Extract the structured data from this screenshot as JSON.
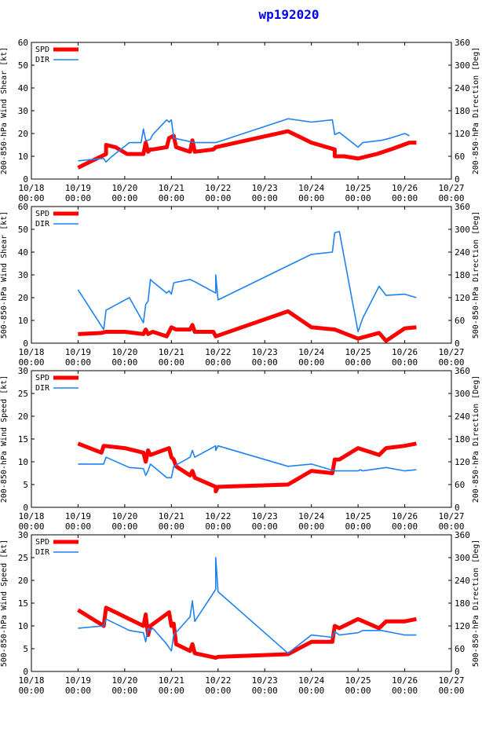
{
  "title": "wp192020",
  "colors": {
    "spd": "#ff0000",
    "dir": "#1e82f0",
    "axis": "#000000",
    "title": "#0000ff"
  },
  "x_ticks": [
    [
      "10/18",
      "00:00"
    ],
    [
      "10/19",
      "00:00"
    ],
    [
      "10/20",
      "00:00"
    ],
    [
      "10/21",
      "00:00"
    ],
    [
      "10/22",
      "00:00"
    ],
    [
      "10/23",
      "00:00"
    ],
    [
      "10/24",
      "00:00"
    ],
    [
      "10/25",
      "00:00"
    ],
    [
      "10/26",
      "00:00"
    ],
    [
      "10/27",
      "00:00"
    ]
  ],
  "chart_data": [
    {
      "type": "line",
      "ylabel_left": "200-850-hPa Wind Shear [kt]",
      "ylabel_right": "200-850-hPa Direction [Deg]",
      "ylim_left": [
        0,
        60
      ],
      "yticks_left": [
        0,
        10,
        20,
        30,
        40,
        50,
        60
      ],
      "ylim_right": [
        0,
        360
      ],
      "yticks_right": [
        0,
        60,
        120,
        180,
        240,
        300,
        360
      ],
      "xlim": [
        0,
        9
      ],
      "legend": [
        "SPD",
        "DIR"
      ],
      "series": [
        {
          "name": "SPD",
          "axis": "left",
          "x": [
            1.0,
            1.3,
            1.6,
            1.6,
            1.8,
            2.05,
            2.4,
            2.45,
            2.5,
            2.55,
            2.6,
            2.9,
            2.95,
            3.05,
            3.1,
            3.4,
            3.45,
            3.5,
            3.9,
            3.95,
            5.5,
            6.0,
            6.5,
            6.5,
            6.7,
            7.0,
            7.4,
            7.7,
            8.1,
            8.25
          ],
          "y": [
            5,
            8,
            11,
            15,
            14,
            11,
            11,
            16,
            12,
            13,
            13,
            14,
            18,
            19,
            14,
            12,
            17,
            12,
            13,
            14,
            21,
            16,
            13,
            10,
            10,
            9,
            11,
            13,
            16,
            16
          ]
        },
        {
          "name": "DIR",
          "axis": "right",
          "x": [
            1.0,
            1.5,
            1.55,
            1.6,
            1.7,
            2.1,
            2.35,
            2.4,
            2.45,
            2.5,
            2.55,
            2.6,
            2.9,
            2.95,
            3.0,
            3.05,
            3.5,
            3.55,
            3.9,
            3.95,
            5.5,
            6.0,
            6.45,
            6.5,
            6.6,
            7.0,
            7.05,
            7.1,
            7.5,
            7.7,
            8.0,
            8.1
          ],
          "y": [
            48,
            54,
            54,
            45,
            57,
            96,
            96,
            132,
            102,
            102,
            105,
            117,
            156,
            150,
            156,
            108,
            96,
            96,
            96,
            96,
            159,
            150,
            156,
            117,
            123,
            84,
            90,
            96,
            102,
            108,
            120,
            114
          ]
        }
      ]
    },
    {
      "type": "line",
      "ylabel_left": "500-850-hPa Wind Shear [kt]",
      "ylabel_right": "500-850-hPa Direction [Deg]",
      "ylim_left": [
        0,
        60
      ],
      "yticks_left": [
        0,
        10,
        20,
        30,
        40,
        50,
        60
      ],
      "ylim_right": [
        0,
        360
      ],
      "yticks_right": [
        0,
        60,
        120,
        180,
        240,
        300,
        360
      ],
      "xlim": [
        0,
        9
      ],
      "legend": [
        "SPD",
        "DIR"
      ],
      "series": [
        {
          "name": "SPD",
          "axis": "left",
          "x": [
            1.0,
            1.5,
            1.6,
            2.0,
            2.4,
            2.45,
            2.5,
            2.6,
            2.9,
            3.0,
            3.1,
            3.4,
            3.45,
            3.5,
            3.9,
            3.95,
            5.5,
            6.0,
            6.5,
            7.0,
            7.45,
            7.6,
            8.0,
            8.25
          ],
          "y": [
            4,
            4.5,
            5,
            5,
            4,
            6,
            4,
            5,
            3,
            7,
            6,
            6,
            8,
            5,
            5,
            3,
            14,
            7,
            6,
            2,
            4.5,
            1,
            6.5,
            7
          ]
        },
        {
          "name": "DIR",
          "axis": "right",
          "x": [
            1.0,
            1.55,
            1.6,
            2.1,
            2.4,
            2.45,
            2.5,
            2.55,
            2.6,
            2.9,
            2.95,
            3.0,
            3.05,
            3.4,
            3.45,
            3.5,
            3.95,
            3.95,
            4.0,
            5.5,
            6.0,
            6.45,
            6.5,
            6.6,
            7.0,
            7.05,
            7.1,
            7.45,
            7.6,
            8.0,
            8.25
          ],
          "y": [
            141,
            36,
            87,
            120,
            54,
            102,
            111,
            168,
            162,
            132,
            138,
            129,
            159,
            168,
            165,
            162,
            132,
            180,
            114,
            204,
            234,
            240,
            291,
            294,
            30,
            48,
            66,
            150,
            126,
            129,
            120
          ]
        }
      ]
    },
    {
      "type": "line",
      "ylabel_left": "200-850-hPa Wind Speed [kt]",
      "ylabel_right": "200-850-hPa Direction [Deg]",
      "ylim_left": [
        0,
        30
      ],
      "yticks_left": [
        0,
        5,
        10,
        15,
        20,
        25,
        30
      ],
      "ylim_right": [
        0,
        360
      ],
      "yticks_right": [
        0,
        60,
        120,
        180,
        240,
        300,
        360
      ],
      "xlim": [
        0,
        9
      ],
      "legend": [
        "SPD",
        "DIR"
      ],
      "series": [
        {
          "name": "SPD",
          "axis": "left",
          "x": [
            1.0,
            1.5,
            1.55,
            2.0,
            2.4,
            2.45,
            2.5,
            2.55,
            2.95,
            3.0,
            3.05,
            3.1,
            3.4,
            3.45,
            3.5,
            3.95,
            3.95,
            4.0,
            5.5,
            6.0,
            6.45,
            6.5,
            6.6,
            7.0,
            7.45,
            7.6,
            8.0,
            8.25
          ],
          "y": [
            14,
            12,
            13.5,
            13,
            12,
            10,
            12.5,
            11.5,
            13,
            11,
            10.5,
            9,
            7,
            8,
            6.5,
            4.5,
            3.5,
            4.5,
            5,
            8,
            7.5,
            10.5,
            10.5,
            13,
            11.5,
            13,
            13.5,
            14
          ]
        },
        {
          "name": "DIR",
          "axis": "right",
          "x": [
            1.0,
            1.55,
            1.6,
            2.1,
            2.4,
            2.45,
            2.5,
            2.55,
            2.9,
            3.0,
            3.05,
            3.4,
            3.45,
            3.5,
            3.95,
            3.95,
            4.0,
            5.5,
            6.0,
            6.5,
            7.0,
            7.05,
            7.1,
            7.6,
            8.0,
            8.25
          ],
          "y": [
            114,
            114,
            132,
            105,
            102,
            84,
            96,
            114,
            78,
            78,
            108,
            132,
            150,
            132,
            162,
            150,
            162,
            108,
            114,
            96,
            96,
            99,
            96,
            105,
            96,
            99
          ]
        }
      ]
    },
    {
      "type": "line",
      "ylabel_left": "500-850-hPa Wind Speed [kt]",
      "ylabel_right": "500-850-hPa Direction [Deg]",
      "ylim_left": [
        0,
        30
      ],
      "yticks_left": [
        0,
        5,
        10,
        15,
        20,
        25,
        30
      ],
      "ylim_right": [
        0,
        360
      ],
      "yticks_right": [
        0,
        60,
        120,
        180,
        240,
        300,
        360
      ],
      "xlim": [
        0,
        9
      ],
      "legend": [
        "SPD",
        "DIR"
      ],
      "series": [
        {
          "name": "SPD",
          "axis": "left",
          "x": [
            1.0,
            1.55,
            1.6,
            2.4,
            2.45,
            2.5,
            2.55,
            2.95,
            3.0,
            3.05,
            3.1,
            3.4,
            3.45,
            3.5,
            3.95,
            4.0,
            5.5,
            6.0,
            6.45,
            6.5,
            6.6,
            7.0,
            7.45,
            7.6,
            8.0,
            8.25
          ],
          "y": [
            13.5,
            10,
            14,
            10,
            12.5,
            8,
            10,
            13,
            10,
            10.5,
            6,
            4.5,
            6,
            4,
            3,
            3.2,
            3.8,
            6.5,
            6.5,
            10,
            9.5,
            11.5,
            9.5,
            11,
            11,
            11.5
          ]
        },
        {
          "name": "DIR",
          "axis": "right",
          "x": [
            1.0,
            1.55,
            1.6,
            2.1,
            2.4,
            2.45,
            2.5,
            2.55,
            2.6,
            2.9,
            3.0,
            3.05,
            3.4,
            3.45,
            3.5,
            3.95,
            3.95,
            4.0,
            5.5,
            6.0,
            6.45,
            6.5,
            6.6,
            7.0,
            7.1,
            7.5,
            8.0,
            8.25
          ],
          "y": [
            114,
            120,
            138,
            108,
            102,
            78,
            114,
            108,
            114,
            72,
            54,
            96,
            144,
            186,
            132,
            216,
            300,
            210,
            48,
            96,
            90,
            105,
            96,
            102,
            108,
            108,
            96,
            96
          ]
        }
      ]
    }
  ]
}
